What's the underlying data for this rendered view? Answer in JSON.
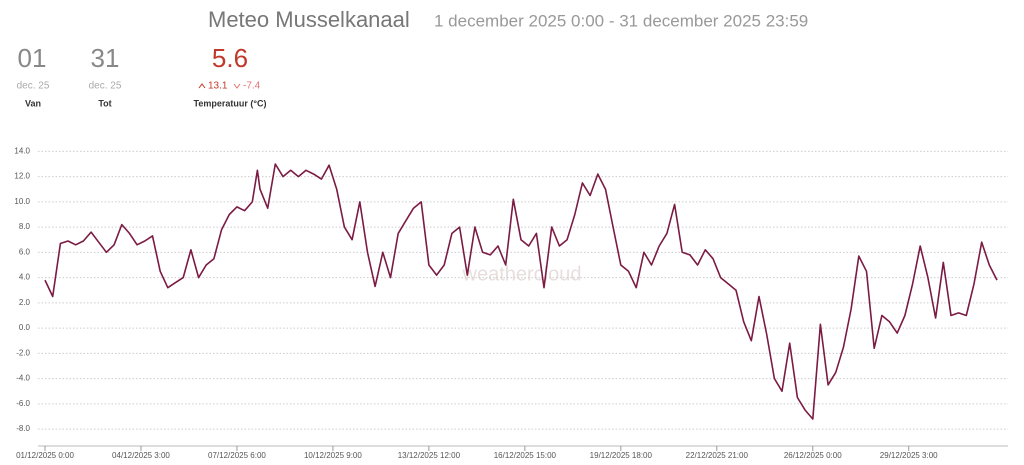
{
  "header": {
    "title": "Meteo Musselkanaal",
    "period": "1 december 2025 0:00 - 31 december 2025 23:59",
    "stats": [
      {
        "value": "01",
        "sub": "dec. 25",
        "label": "Van"
      },
      {
        "value": "31",
        "sub": "dec. 25",
        "label": "Tot"
      },
      {
        "value": "5.6",
        "max": "13.1",
        "min": "-7.4",
        "label": "Temperatuur (°C)"
      }
    ]
  },
  "chart_data": {
    "type": "line",
    "watermark": "weathercloud",
    "grid": true,
    "xlim": [
      "01/12/2025 0:00",
      "31/12/2025 23:59"
    ],
    "xticks": [
      "01/12/2025 0:00",
      "04/12/2025 3:00",
      "07/12/2025 6:00",
      "10/12/2025 9:00",
      "13/12/2025 12:00",
      "16/12/2025 15:00",
      "19/12/2025 18:00",
      "22/12/2025 21:00",
      "26/12/2025 0:00",
      "29/12/2025 3:00"
    ],
    "ylim": [
      -9.5,
      14.9
    ],
    "yticks": [
      {
        "value": 14,
        "label": "14.0"
      },
      {
        "value": 12,
        "label": "12.0"
      },
      {
        "value": 10,
        "label": "10.0"
      },
      {
        "value": 8,
        "label": "8.0"
      },
      {
        "value": 6,
        "label": "6.0"
      },
      {
        "value": 4,
        "label": "4.0"
      },
      {
        "value": 2,
        "label": "2.0"
      },
      {
        "value": 0,
        "label": "0.0"
      },
      {
        "value": -2,
        "label": "-2.0"
      },
      {
        "value": -4,
        "label": "-4.0"
      },
      {
        "value": -6,
        "label": "-6.0"
      },
      {
        "value": -8,
        "label": "-8.0"
      }
    ],
    "x": [
      "01/12/2025 0:00",
      "01/12/2025 6:00",
      "01/12/2025 12:00",
      "01/12/2025 18:00",
      "02/12/2025 0:00",
      "02/12/2025 6:00",
      "02/12/2025 12:00",
      "02/12/2025 18:00",
      "03/12/2025 0:00",
      "03/12/2025 6:00",
      "03/12/2025 12:00",
      "03/12/2025 18:00",
      "04/12/2025 0:00",
      "04/12/2025 6:00",
      "04/12/2025 12:00",
      "04/12/2025 18:00",
      "05/12/2025 0:00",
      "05/12/2025 6:00",
      "05/12/2025 12:00",
      "05/12/2025 18:00",
      "06/12/2025 0:00",
      "06/12/2025 6:00",
      "06/12/2025 12:00",
      "06/12/2025 18:00",
      "07/12/2025 0:00",
      "07/12/2025 6:00",
      "07/12/2025 12:00",
      "07/12/2025 18:00",
      "07/12/2025 22:00",
      "08/12/2025 0:00",
      "08/12/2025 6:00",
      "08/12/2025 12:00",
      "08/12/2025 18:00",
      "09/12/2025 0:00",
      "09/12/2025 6:00",
      "09/12/2025 12:00",
      "09/12/2025 18:00",
      "10/12/2025 0:00",
      "10/12/2025 6:00",
      "10/12/2025 12:00",
      "10/12/2025 18:00",
      "11/12/2025 0:00",
      "11/12/2025 6:00",
      "11/12/2025 12:00",
      "11/12/2025 18:00",
      "12/12/2025 0:00",
      "12/12/2025 6:00",
      "12/12/2025 12:00",
      "12/12/2025 18:00",
      "13/12/2025 0:00",
      "13/12/2025 6:00",
      "13/12/2025 12:00",
      "13/12/2025 18:00",
      "14/12/2025 0:00",
      "14/12/2025 6:00",
      "14/12/2025 12:00",
      "14/12/2025 18:00",
      "15/12/2025 0:00",
      "15/12/2025 6:00",
      "15/12/2025 12:00",
      "15/12/2025 18:00",
      "16/12/2025 0:00",
      "16/12/2025 6:00",
      "16/12/2025 12:00",
      "16/12/2025 18:00",
      "17/12/2025 0:00",
      "17/12/2025 6:00",
      "17/12/2025 12:00",
      "17/12/2025 18:00",
      "18/12/2025 0:00",
      "18/12/2025 6:00",
      "18/12/2025 12:00",
      "18/12/2025 18:00",
      "19/12/2025 0:00",
      "19/12/2025 6:00",
      "19/12/2025 12:00",
      "19/12/2025 18:00",
      "20/12/2025 0:00",
      "20/12/2025 6:00",
      "20/12/2025 12:00",
      "20/12/2025 18:00",
      "21/12/2025 0:00",
      "21/12/2025 6:00",
      "21/12/2025 12:00",
      "21/12/2025 18:00",
      "22/12/2025 0:00",
      "22/12/2025 6:00",
      "22/12/2025 12:00",
      "22/12/2025 18:00",
      "23/12/2025 0:00",
      "23/12/2025 6:00",
      "23/12/2025 12:00",
      "23/12/2025 18:00",
      "24/12/2025 0:00",
      "24/12/2025 6:00",
      "24/12/2025 12:00",
      "24/12/2025 18:00",
      "25/12/2025 0:00",
      "25/12/2025 6:00",
      "25/12/2025 12:00",
      "25/12/2025 18:00",
      "26/12/2025 0:00",
      "26/12/2025 6:00",
      "26/12/2025 12:00",
      "26/12/2025 18:00",
      "27/12/2025 0:00",
      "27/12/2025 6:00",
      "27/12/2025 12:00",
      "27/12/2025 18:00",
      "28/12/2025 0:00",
      "28/12/2025 6:00",
      "28/12/2025 12:00",
      "28/12/2025 18:00",
      "29/12/2025 0:00",
      "29/12/2025 6:00",
      "29/12/2025 12:00",
      "29/12/2025 18:00",
      "30/12/2025 0:00",
      "30/12/2025 6:00",
      "30/12/2025 12:00",
      "30/12/2025 18:00",
      "31/12/2025 0:00",
      "31/12/2025 6:00",
      "31/12/2025 12:00",
      "31/12/2025 18:00",
      "31/12/2025 23:59"
    ],
    "series": [
      {
        "name": "Temperatuur",
        "color": "#7b1b43",
        "values": [
          3.8,
          2.5,
          6.7,
          6.9,
          6.6,
          6.9,
          7.6,
          6.8,
          6.0,
          6.6,
          8.2,
          7.5,
          6.6,
          6.9,
          7.3,
          4.5,
          3.2,
          3.6,
          4.0,
          6.2,
          4.0,
          5.0,
          5.5,
          7.8,
          9.0,
          9.6,
          9.3,
          10.0,
          12.5,
          11.0,
          9.5,
          13.0,
          12.0,
          12.5,
          12.0,
          12.5,
          12.2,
          11.8,
          12.9,
          11.0,
          8.0,
          7.0,
          10.0,
          6.0,
          3.3,
          6.0,
          4.0,
          7.5,
          8.5,
          9.5,
          10.0,
          5.0,
          4.2,
          5.0,
          7.5,
          8.0,
          4.2,
          8.0,
          6.0,
          5.8,
          6.5,
          5.0,
          10.2,
          7.0,
          6.5,
          7.5,
          3.2,
          8.0,
          6.5,
          7.0,
          9.0,
          11.5,
          10.5,
          12.2,
          11.0,
          8.0,
          5.0,
          4.5,
          3.2,
          6.0,
          5.0,
          6.5,
          7.5,
          9.8,
          6.0,
          5.8,
          5.0,
          6.2,
          5.5,
          4.0,
          3.5,
          3.0,
          0.5,
          -1.0,
          2.5,
          -0.5,
          -4.0,
          -5.0,
          -1.2,
          -5.5,
          -6.5,
          -7.2,
          0.3,
          -4.5,
          -3.5,
          -1.5,
          1.5,
          5.7,
          4.5,
          -1.6,
          1.0,
          0.5,
          -0.4,
          1.0,
          3.5,
          6.5,
          4.0,
          0.8,
          5.2,
          1.0,
          1.2,
          1.0,
          3.5,
          6.8,
          5.0,
          3.8
        ]
      }
    ]
  }
}
